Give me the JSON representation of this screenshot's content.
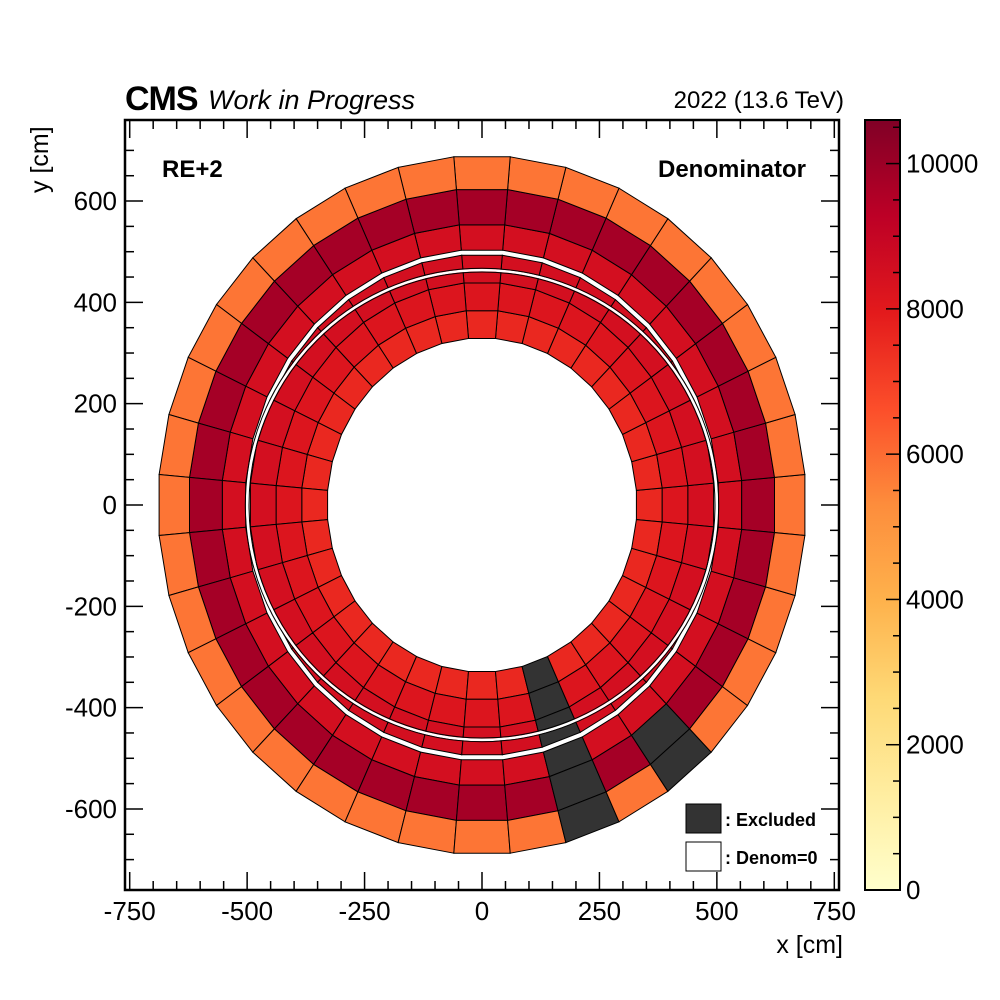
{
  "header": {
    "experiment": "CMS",
    "status": "Work in Progress",
    "energy": "2022 (13.6 TeV)"
  },
  "plot": {
    "station_label": "RE+2",
    "quantity_label": "Denominator"
  },
  "legend": {
    "excluded": ": Excluded",
    "denom_zero": ": Denom=0",
    "excluded_color": "#333333",
    "denom_zero_color": "#ffffff"
  },
  "chart_data": {
    "type": "heatmap",
    "geometry": "polar-sectors",
    "title": "",
    "xlabel": "x [cm]",
    "ylabel": "y [cm]",
    "xlim": [
      -760,
      760
    ],
    "ylim": [
      -760,
      760
    ],
    "x_ticks": [
      -750,
      -500,
      -250,
      0,
      250,
      500,
      750
    ],
    "y_ticks": [
      -600,
      -400,
      -200,
      0,
      200,
      400,
      600
    ],
    "zlim": [
      0,
      10600
    ],
    "z_ticks": [
      0,
      2000,
      4000,
      6000,
      8000,
      10000
    ],
    "colormap": "YlOrRd",
    "colormap_stops": [
      "#ffffcc",
      "#ffeda0",
      "#fed976",
      "#feb24c",
      "#fd8d3c",
      "#fc4e2a",
      "#e31a1c",
      "#bd0026",
      "#800026"
    ],
    "n_sectors": 36,
    "rings_cm": [
      [
        330,
        385
      ],
      [
        385,
        440
      ],
      [
        440,
        495
      ],
      [
        505,
        555
      ],
      [
        555,
        625
      ],
      [
        625,
        690
      ]
    ],
    "ring_values": [
      7600,
      8200,
      8500,
      8500,
      9800,
      5800
    ],
    "excluded_cells": [
      {
        "ring": 0,
        "sector": 29
      },
      {
        "ring": 1,
        "sector": 29
      },
      {
        "ring": 2,
        "sector": 29
      },
      {
        "ring": 3,
        "sector": 29
      },
      {
        "ring": 4,
        "sector": 29
      },
      {
        "ring": 5,
        "sector": 29
      },
      {
        "ring": 4,
        "sector": 31
      },
      {
        "ring": 5,
        "sector": 31
      }
    ],
    "grid": false,
    "legend_position": "bottom-right"
  }
}
